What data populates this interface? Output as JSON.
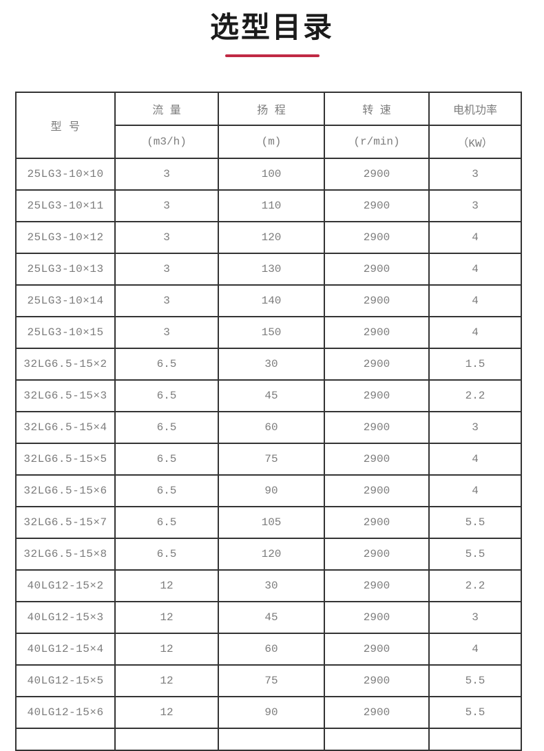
{
  "page": {
    "title": "选型目录"
  },
  "colors": {
    "accent_line": "#c02a44",
    "table_border": "#333333",
    "cell_text": "#7c7c7c",
    "title_text": "#1b1b1b"
  },
  "table": {
    "columns": [
      {
        "label": "型 号",
        "unit": ""
      },
      {
        "label": "流  量",
        "unit": "(m3/h)"
      },
      {
        "label": "扬  程",
        "unit": "(m)"
      },
      {
        "label": "转  速",
        "unit": "(r/min)"
      },
      {
        "label": "电机功率",
        "unit": "（KW）"
      }
    ],
    "rows": [
      [
        "25LG3-10×10",
        "3",
        "100",
        "2900",
        "3"
      ],
      [
        "25LG3-10×11",
        "3",
        "110",
        "2900",
        "3"
      ],
      [
        "25LG3-10×12",
        "3",
        "120",
        "2900",
        "4"
      ],
      [
        "25LG3-10×13",
        "3",
        "130",
        "2900",
        "4"
      ],
      [
        "25LG3-10×14",
        "3",
        "140",
        "2900",
        "4"
      ],
      [
        "25LG3-10×15",
        "3",
        "150",
        "2900",
        "4"
      ],
      [
        "32LG6.5-15×2",
        "6.5",
        "30",
        "2900",
        "1.5"
      ],
      [
        "32LG6.5-15×3",
        "6.5",
        "45",
        "2900",
        "2.2"
      ],
      [
        "32LG6.5-15×4",
        "6.5",
        "60",
        "2900",
        "3"
      ],
      [
        "32LG6.5-15×5",
        "6.5",
        "75",
        "2900",
        "4"
      ],
      [
        "32LG6.5-15×6",
        "6.5",
        "90",
        "2900",
        "4"
      ],
      [
        "32LG6.5-15×7",
        "6.5",
        "105",
        "2900",
        "5.5"
      ],
      [
        "32LG6.5-15×8",
        "6.5",
        "120",
        "2900",
        "5.5"
      ],
      [
        "40LG12-15×2",
        "12",
        "30",
        "2900",
        "2.2"
      ],
      [
        "40LG12-15×3",
        "12",
        "45",
        "2900",
        "3"
      ],
      [
        "40LG12-15×4",
        "12",
        "60",
        "2900",
        "4"
      ],
      [
        "40LG12-15×5",
        "12",
        "75",
        "2900",
        "5.5"
      ],
      [
        "40LG12-15×6",
        "12",
        "90",
        "2900",
        "5.5"
      ]
    ]
  }
}
